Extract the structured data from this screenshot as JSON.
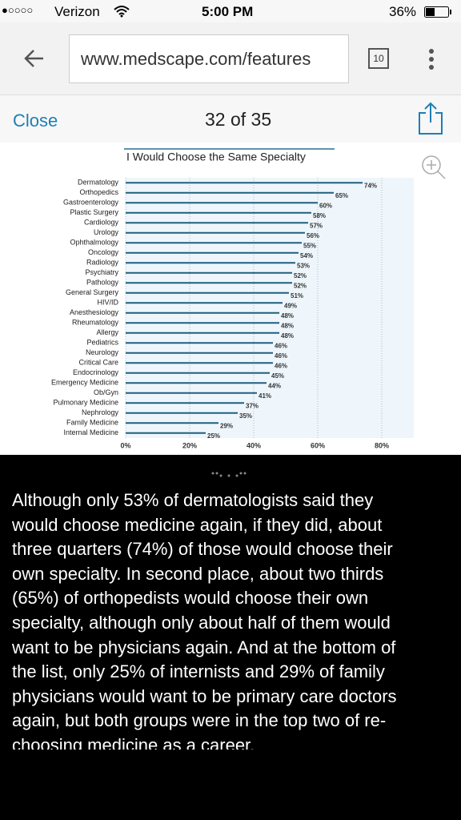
{
  "status_bar": {
    "signal": "●○○○○",
    "carrier": "Verizon",
    "time": "5:00 PM",
    "battery": "36%"
  },
  "browser": {
    "url": "www.medscape.com/features",
    "tab_count": "10"
  },
  "nav": {
    "close": "Close",
    "position": "32 of 35"
  },
  "chart_data": {
    "type": "bar",
    "orientation": "horizontal",
    "title": "I Would Choose the Same Specialty",
    "categories": [
      "Dermatology",
      "Orthopedics",
      "Gastroenterology",
      "Plastic Surgery",
      "Cardiology",
      "Urology",
      "Ophthalmology",
      "Oncology",
      "Radiology",
      "Psychiatry",
      "Pathology",
      "General Surgery",
      "HIV/ID",
      "Anesthesiology",
      "Rheumatology",
      "Allergy",
      "Pediatrics",
      "Neurology",
      "Critical Care",
      "Endocrinology",
      "Emergency Medicine",
      "Ob/Gyn",
      "Pulmonary Medicine",
      "Nephrology",
      "Family Medicine",
      "Internal Medicine"
    ],
    "values": [
      74,
      65,
      60,
      58,
      57,
      56,
      55,
      54,
      53,
      52,
      52,
      51,
      49,
      48,
      48,
      48,
      46,
      46,
      46,
      45,
      44,
      41,
      37,
      35,
      29,
      25
    ],
    "value_labels": [
      "74%",
      "65%",
      "60%",
      "58%",
      "57%",
      "56%",
      "55%",
      "54%",
      "53%",
      "52%",
      "52%",
      "51%",
      "49%",
      "48%",
      "48%",
      "48%",
      "46%",
      "46%",
      "46%",
      "45%",
      "44%",
      "41%",
      "37%",
      "35%",
      "29%",
      "25%"
    ],
    "color": "#1f5f7f",
    "xlim": [
      0,
      90
    ],
    "xticks": [
      {
        "value": 0,
        "label": "0%"
      },
      {
        "value": 20,
        "label": "20%"
      },
      {
        "value": 40,
        "label": "40%"
      },
      {
        "value": 60,
        "label": "60%"
      },
      {
        "value": 80,
        "label": "80%"
      }
    ],
    "grid": true
  },
  "caption": {
    "lines": [
      "Although only 53% of dermatologists said they",
      "would choose medicine again, if they did, about",
      "three quarters (74%) of those would choose their",
      "own specialty. In second place, about two thirds",
      "(65%) of orthopedists would choose their own",
      "specialty, although only about half of them would",
      "want to be physicians again. And at the bottom of",
      "the list, only 25% of internists and 29% of family",
      "physicians would want to be primary care doctors",
      "again, but both groups were in the top two of re-",
      "choosing medicine as a career."
    ]
  }
}
